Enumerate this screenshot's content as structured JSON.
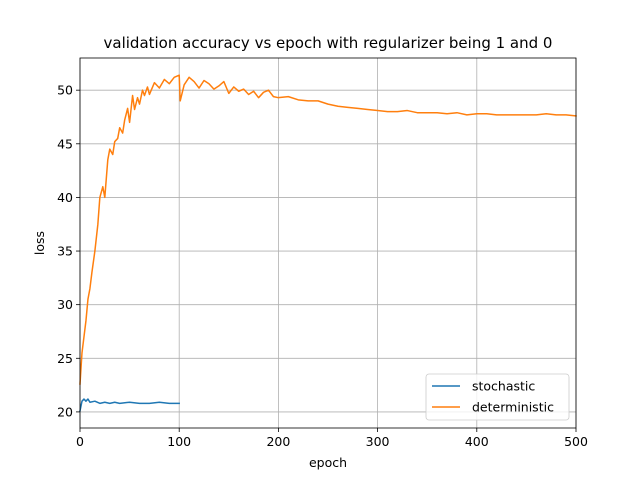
{
  "chart_data": {
    "type": "line",
    "title": "validation accuracy vs epoch with regularizer being 1 and 0",
    "xlabel": "epoch",
    "ylabel": "loss",
    "xlim": [
      0,
      500
    ],
    "ylim": [
      18.5,
      53
    ],
    "xticks": [
      0,
      100,
      200,
      300,
      400,
      500
    ],
    "xtick_labels": [
      "0",
      "100",
      "200",
      "300",
      "400",
      "500"
    ],
    "yticks": [
      20,
      25,
      30,
      35,
      40,
      45,
      50
    ],
    "ytick_labels": [
      "20",
      "25",
      "30",
      "35",
      "40",
      "45",
      "50"
    ],
    "grid": true,
    "legend_position": "lower-right",
    "series": [
      {
        "name": "stochastic",
        "color": "#1f77b4",
        "x": [
          0,
          2,
          4,
          6,
          8,
          10,
          15,
          20,
          25,
          30,
          35,
          40,
          50,
          60,
          70,
          80,
          90,
          100
        ],
        "y": [
          20.1,
          21.0,
          21.2,
          21.0,
          21.2,
          20.9,
          21.0,
          20.8,
          20.9,
          20.8,
          20.9,
          20.8,
          20.9,
          20.8,
          20.8,
          20.9,
          20.8,
          20.8
        ]
      },
      {
        "name": "deterministic",
        "color": "#ff7f0e",
        "x": [
          0,
          2,
          4,
          6,
          8,
          10,
          12,
          15,
          18,
          20,
          23,
          25,
          28,
          30,
          33,
          35,
          38,
          40,
          43,
          45,
          48,
          50,
          53,
          55,
          58,
          60,
          63,
          65,
          68,
          70,
          75,
          80,
          85,
          90,
          95,
          100,
          101,
          105,
          110,
          115,
          120,
          125,
          130,
          135,
          140,
          145,
          150,
          155,
          160,
          165,
          170,
          175,
          180,
          185,
          190,
          195,
          200,
          210,
          220,
          230,
          240,
          250,
          260,
          270,
          280,
          290,
          300,
          310,
          320,
          330,
          340,
          350,
          360,
          370,
          380,
          390,
          400,
          410,
          420,
          430,
          440,
          450,
          460,
          470,
          480,
          490,
          500
        ],
        "y": [
          22.6,
          25.5,
          27.0,
          28.5,
          30.5,
          31.5,
          33.0,
          35.0,
          37.5,
          40.0,
          41.0,
          40.0,
          43.5,
          44.5,
          44.0,
          45.2,
          45.5,
          46.5,
          46.0,
          47.2,
          48.3,
          47.0,
          49.5,
          48.2,
          49.3,
          48.7,
          50.0,
          49.5,
          50.3,
          49.6,
          50.7,
          50.2,
          51.0,
          50.6,
          51.2,
          51.4,
          49.0,
          50.5,
          51.2,
          50.8,
          50.2,
          50.9,
          50.6,
          50.1,
          50.4,
          50.8,
          49.7,
          50.3,
          49.9,
          50.1,
          49.6,
          49.9,
          49.3,
          49.8,
          50.0,
          49.4,
          49.3,
          49.4,
          49.1,
          49.0,
          49.0,
          48.7,
          48.5,
          48.4,
          48.3,
          48.2,
          48.1,
          48.0,
          48.0,
          48.1,
          47.9,
          47.9,
          47.9,
          47.8,
          47.9,
          47.7,
          47.8,
          47.8,
          47.7,
          47.7,
          47.7,
          47.7,
          47.7,
          47.8,
          47.7,
          47.7,
          47.6
        ]
      }
    ]
  }
}
